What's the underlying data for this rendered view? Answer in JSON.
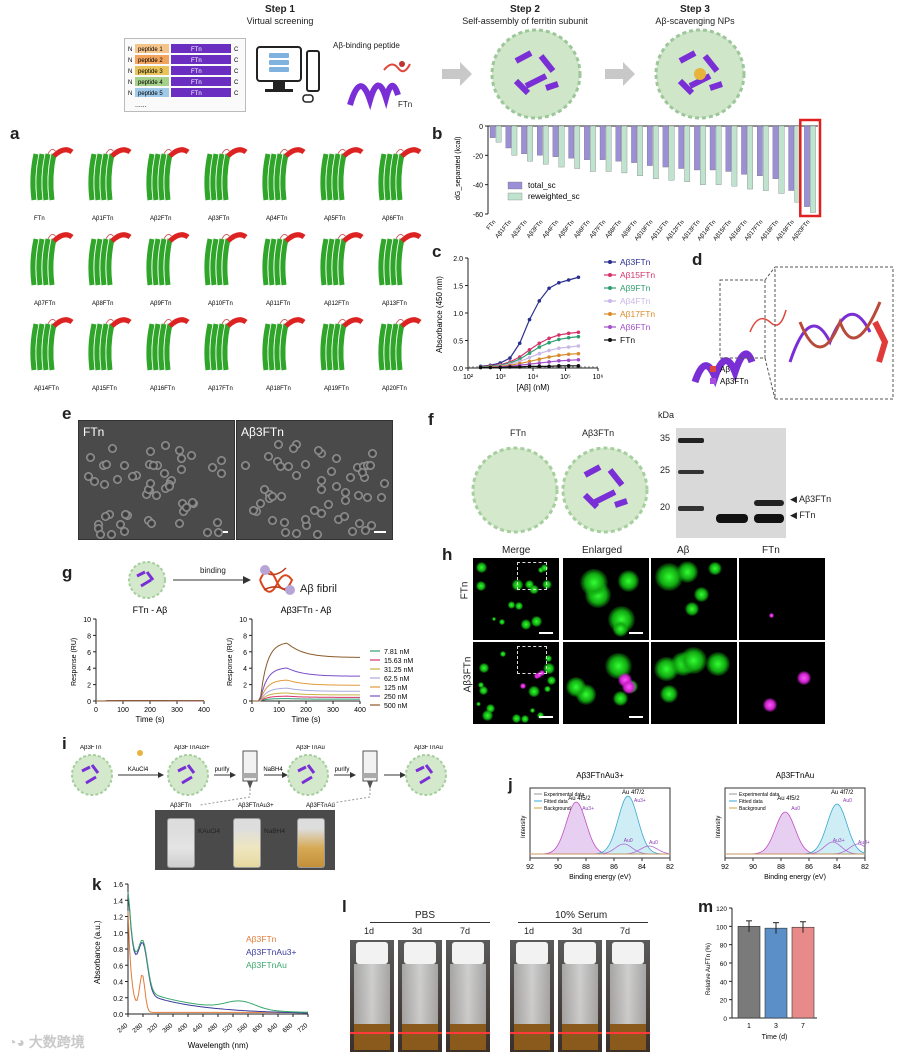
{
  "step1": {
    "title": "Step 1",
    "subtitle": "Virtual screening"
  },
  "step2": {
    "title": "Step 2",
    "subtitle": "Self-assembly of ferritin subunit"
  },
  "step3": {
    "title": "Step 3",
    "subtitle": "Aβ-scavenging NPs"
  },
  "screen": {
    "peptides": [
      "peptide 1",
      "peptide 2",
      "peptide 3",
      "peptide 4",
      "peptide 5"
    ],
    "ftn": "FTn",
    "n": "N",
    "c": "C",
    "more": "......",
    "binding_label": "Aβ-binding peptide",
    "ftn_label": "FTn"
  },
  "panel_labels": [
    "a",
    "b",
    "c",
    "d",
    "e",
    "f",
    "g",
    "h",
    "i",
    "j",
    "k",
    "l",
    "m"
  ],
  "panel_a": {
    "row1": [
      "FTn",
      "Aβ1FTn",
      "Aβ2FTn",
      "Aβ3FTn",
      "Aβ4FTn",
      "Aβ5FTn",
      "Aβ6FTn"
    ],
    "row2": [
      "Aβ7FTn",
      "Aβ8FTn",
      "Aβ9FTn",
      "Aβ10FTn",
      "Aβ11FTn",
      "Aβ12FTn",
      "Aβ13FTn"
    ],
    "row3": [
      "Aβ14FTn",
      "Aβ15FTn",
      "Aβ16FTn",
      "Aβ17FTn",
      "Aβ18FTn",
      "Aβ19FTn",
      "Aβ20FTn"
    ]
  },
  "panel_b": {
    "chart_data": {
      "type": "bar",
      "ylabel": "dG_separated (kcal)",
      "ylim": [
        -60,
        0
      ],
      "yticks": [
        0,
        -20,
        -40,
        -60
      ],
      "categories": [
        "FTn",
        "Aβ1FTn",
        "Aβ2FTn",
        "Aβ3FTn",
        "Aβ4FTn",
        "Aβ5FTn",
        "Aβ6FTn",
        "Aβ7FTn",
        "Aβ8FTn",
        "Aβ9FTn",
        "Aβ10FTn",
        "Aβ11FTn",
        "Aβ12FTn",
        "Aβ13FTn",
        "Aβ14FTn",
        "Aβ15FTn",
        "Aβ16FTn",
        "Aβ17FTn",
        "Aβ18FTn",
        "Aβ19FTn",
        "Aβ20FTn"
      ],
      "series": [
        {
          "name": "total_sc",
          "color": "#9b8fd6",
          "values": [
            -8,
            -15,
            -19,
            -20,
            -21,
            -22,
            -23,
            -23,
            -24,
            -25,
            -27,
            -28,
            -29,
            -30,
            -30,
            -31,
            -33,
            -34,
            -36,
            -44,
            -55
          ]
        },
        {
          "name": "reweighted_sc",
          "color": "#bfe3cf",
          "values": [
            -11,
            -20,
            -24,
            -26,
            -28,
            -29,
            -31,
            -31,
            -32,
            -34,
            -36,
            -37,
            -38,
            -40,
            -40,
            -41,
            -43,
            -44,
            -46,
            -52,
            -59
          ]
        }
      ],
      "highlight_index": 20,
      "legend": "bottom-left"
    }
  },
  "panel_c": {
    "chart_data": {
      "type": "line",
      "xlabel": "[Aβ] (nM)",
      "ylabel": "Absorbance (450 nm)",
      "xscale": "log",
      "xlim": [
        100,
        1000000
      ],
      "ylim": [
        0,
        2.0
      ],
      "xticks": [
        "10²",
        "10³",
        "10⁴",
        "10⁵",
        "10⁶"
      ],
      "yticks": [
        0.0,
        0.5,
        1.0,
        1.5,
        2.0
      ],
      "x": [
        244,
        488,
        977,
        1953,
        3906,
        7813,
        15625,
        31250,
        62500,
        125000,
        250000
      ],
      "series": [
        {
          "name": "Aβ3FTn",
          "color": "#2a2f8f",
          "values": [
            0.03,
            0.05,
            0.09,
            0.18,
            0.45,
            0.88,
            1.22,
            1.45,
            1.55,
            1.6,
            1.65
          ]
        },
        {
          "name": "Aβ15FTn",
          "color": "#d6336c",
          "values": [
            0.02,
            0.04,
            0.06,
            0.11,
            0.2,
            0.33,
            0.45,
            0.54,
            0.6,
            0.63,
            0.65
          ]
        },
        {
          "name": "Aβ9FTn",
          "color": "#2e9e6e",
          "values": [
            0.02,
            0.03,
            0.05,
            0.09,
            0.16,
            0.27,
            0.38,
            0.46,
            0.52,
            0.55,
            0.57
          ]
        },
        {
          "name": "Aβ4FTn",
          "color": "#c9b8e8",
          "values": [
            0.01,
            0.02,
            0.04,
            0.07,
            0.12,
            0.19,
            0.26,
            0.32,
            0.36,
            0.38,
            0.4
          ]
        },
        {
          "name": "Aβ17FTn",
          "color": "#d98b2b",
          "values": [
            0.01,
            0.02,
            0.03,
            0.05,
            0.08,
            0.12,
            0.16,
            0.2,
            0.23,
            0.25,
            0.26
          ]
        },
        {
          "name": "Aβ6FTn",
          "color": "#a34fc9",
          "values": [
            0.01,
            0.01,
            0.02,
            0.03,
            0.05,
            0.07,
            0.09,
            0.11,
            0.13,
            0.14,
            0.15
          ]
        },
        {
          "name": "FTn",
          "color": "#111111",
          "values": [
            0.01,
            0.01,
            0.01,
            0.02,
            0.02,
            0.03,
            0.03,
            0.03,
            0.04,
            0.04,
            0.04
          ]
        }
      ],
      "legend": "right"
    }
  },
  "panel_d": {
    "legend": [
      {
        "label": "Aβ",
        "color": "#e0483d"
      },
      {
        "label": "Aβ3FTn",
        "color": "#a64ce0"
      }
    ]
  },
  "panel_e": {
    "left": "FTn",
    "right": "Aβ3FTn"
  },
  "panel_f": {
    "left": "FTn",
    "right": "Aβ3FTn",
    "kda": "kDa",
    "markers": [
      "35",
      "25",
      "20"
    ],
    "band_upper": "Aβ3FTn",
    "band_lower": "FTn"
  },
  "panel_g": {
    "binding": "binding",
    "fibril": "Aβ fibril",
    "left_title": "FTn - Aβ",
    "right_title": "Aβ3FTn - Aβ",
    "chart_data": {
      "type": "line",
      "xlabel": "Time (s)",
      "ylabel": "Response (RU)",
      "xlim": [
        0,
        400
      ],
      "ylim": [
        0,
        10
      ],
      "xticks": [
        0,
        100,
        200,
        300,
        400
      ],
      "yticks": [
        0,
        2,
        4,
        6,
        8,
        10
      ],
      "concentrations": [
        "7.81 nM",
        "15.63 nM",
        "31.25 nM",
        "62.5 nM",
        "125 nM",
        "250 nM",
        "500 nM"
      ],
      "colors": [
        "#2e9e6e",
        "#d6336c",
        "#c9b140",
        "#a9a9d9",
        "#e09a3a",
        "#7a4fc9",
        "#8a5a2a"
      ],
      "plateau": [
        0.3,
        0.6,
        1.0,
        1.6,
        2.6,
        4.1,
        7.2
      ],
      "left_plateau": 0.05,
      "legend": "right"
    }
  },
  "panel_h": {
    "cols": [
      "Merge",
      "Enlarged",
      "Aβ",
      "FTn"
    ],
    "rows": [
      "FTn",
      "Aβ3FTn"
    ]
  },
  "panel_i": {
    "items": [
      "Aβ3FTn",
      "KAuCl4",
      "Aβ3FTnAu3+",
      "purify",
      "Remove free Au3+ ions",
      "NaBH4",
      "Aβ3FTnAu",
      "purify",
      "Remove free NaBH4",
      "Aβ3FTnAu"
    ],
    "vials": [
      "Aβ3FTn",
      "Aβ3FTnAu3+",
      "Aβ3FTnAu"
    ],
    "arrows": [
      "KAuCl4",
      "NaBH4"
    ]
  },
  "panel_j": {
    "left_title": "Aβ3FTnAu3+",
    "right_title": "Aβ3FTnAu",
    "legend": [
      "Experimental data",
      "Fitted data",
      "Background"
    ],
    "xlabel": "Binding energy (eV)",
    "ylabel": "Intensity",
    "xticks": [
      92,
      90,
      88,
      86,
      84,
      82
    ],
    "left_labels": [
      "Au 4f5/2",
      "Au 4f7/2",
      "Au3+",
      "Au3+",
      "Au0",
      "Au0"
    ],
    "right_labels": [
      "Au 4f5/2",
      "Au 4f7/2",
      "Au0",
      "Au0",
      "Au3+",
      "Au3+"
    ]
  },
  "panel_k": {
    "chart_data": {
      "type": "line",
      "xlabel": "Wavelength (nm)",
      "ylabel": "Absorbance (a.u.)",
      "xlim": [
        240,
        720
      ],
      "ylim": [
        0,
        1.6
      ],
      "xticks": [
        240,
        280,
        320,
        360,
        400,
        440,
        480,
        520,
        560,
        600,
        640,
        680,
        720
      ],
      "yticks": [
        0.0,
        0.2,
        0.4,
        0.6,
        0.8,
        1.0,
        1.2,
        1.4,
        1.6
      ],
      "series": [
        {
          "name": "Aβ3FTn",
          "color": "#e07b39"
        },
        {
          "name": "Aβ3FTnAu3+",
          "color": "#3a3a9e"
        },
        {
          "name": "Aβ3FTnAu",
          "color": "#3aa86b"
        }
      ]
    }
  },
  "panel_l": {
    "groups": [
      "PBS",
      "10% Serum"
    ],
    "days": [
      "1d",
      "3d",
      "7d",
      "1d",
      "3d",
      "7d"
    ]
  },
  "panel_m": {
    "chart_data": {
      "type": "bar",
      "xlabel": "Time (d)",
      "ylabel": "Relative AuFTn (%)",
      "categories": [
        "1",
        "3",
        "7"
      ],
      "values": [
        100,
        98,
        99
      ],
      "colors": [
        "#7a7a7a",
        "#5a8fc7",
        "#e88a8a"
      ],
      "ylim": [
        0,
        120
      ],
      "yticks": [
        0,
        20,
        40,
        60,
        80,
        100,
        120
      ]
    }
  },
  "watermark": "大数跨境"
}
